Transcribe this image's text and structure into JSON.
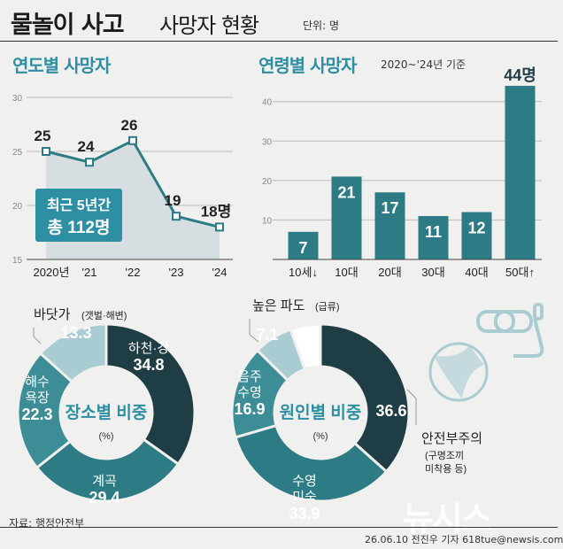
{
  "header": {
    "title": "물놀이 사고",
    "subtitle": "사망자 현황",
    "unit": "단위: 명"
  },
  "colors": {
    "accent": "#2e8fa3",
    "dark": "#1f3d44",
    "mid": "#2d7b84",
    "light": "#a9ccd3",
    "area": "#d7dee1"
  },
  "sections": {
    "yearly_title": "연도별 사망자",
    "age_title": "연령별 사망자",
    "age_basis": "2020~'24년 기준"
  },
  "callout": {
    "line1": "최근 5년간",
    "line2": "총 112명"
  },
  "chart_data": [
    {
      "type": "line",
      "title": "연도별 사망자",
      "x": [
        "2020년",
        "'21",
        "'22",
        "'23",
        "'24"
      ],
      "values": [
        25,
        24,
        26,
        19,
        18
      ],
      "data_labels": [
        "25",
        "24",
        "26",
        "19",
        "18명"
      ],
      "yticks": [
        "30",
        "25",
        "20",
        "15"
      ],
      "ylim": [
        15,
        30
      ],
      "grid": true
    },
    {
      "type": "bar",
      "title": "연령별 사망자",
      "categories": [
        "10세↓",
        "10대",
        "20대",
        "30대",
        "40대",
        "50대↑"
      ],
      "values": [
        7,
        21,
        17,
        11,
        12,
        44
      ],
      "data_labels": [
        "7",
        "21",
        "17",
        "11",
        "12",
        "44명"
      ],
      "yticks": [
        "40",
        "30",
        "20",
        "10"
      ],
      "ylim": [
        0,
        46
      ],
      "grid": true
    },
    {
      "type": "pie",
      "title": "장소별 비중",
      "center_title": "장소별 비중",
      "center_unit": "(%)",
      "slices": [
        {
          "label": "하천·강",
          "value": 34.8
        },
        {
          "label": "계곡",
          "value": 29.4
        },
        {
          "label": "해수욕장",
          "label_lines": [
            "해수",
            "욕장"
          ],
          "value": 22.3
        },
        {
          "label": "바닷가",
          "value": 13.3,
          "callout": "바닷가",
          "callout_note": "(갯벌·해변)"
        }
      ]
    },
    {
      "type": "pie",
      "title": "원인별 비중",
      "center_title": "원인별 비중",
      "center_unit": "(%)",
      "slices": [
        {
          "label": "안전부주의",
          "value": 36.6,
          "callout": "안전부주의",
          "callout_note_lines": [
            "(구명조끼",
            "미착용 등)"
          ]
        },
        {
          "label": "수영미숙",
          "label_lines": [
            "수영",
            "미숙"
          ],
          "value": 33.9
        },
        {
          "label": "음주수영",
          "label_lines": [
            "음주",
            "수영"
          ],
          "value": 16.9
        },
        {
          "label": "높은 파도",
          "value": 7.1,
          "callout": "높은 파도",
          "callout_note": "(급류)"
        },
        {
          "label": "",
          "value": 5.5
        }
      ]
    }
  ],
  "footer": {
    "source": "자료: 행정안전부",
    "credit": "26.06.10 전진우 기자 618tue@newsis.com",
    "watermark": "뉴시스"
  }
}
